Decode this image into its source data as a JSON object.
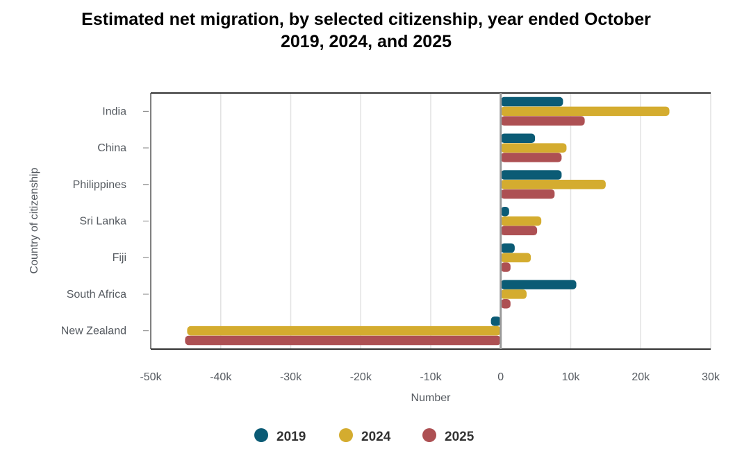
{
  "chart_data": {
    "type": "bar",
    "orientation": "horizontal",
    "title": "Estimated net migration, by selected citizenship, year ended October 2019, 2024, and 2025",
    "title_lines": [
      "Estimated net migration, by selected citizenship, year ended October",
      "2019, 2024, and 2025"
    ],
    "xlabel": "Number",
    "ylabel": "Country of citizenship",
    "xlim": [
      -50000,
      30000
    ],
    "xticks": [
      -50000,
      -40000,
      -30000,
      -20000,
      -10000,
      0,
      10000,
      20000,
      30000
    ],
    "xtick_labels": [
      "-50k",
      "-40k",
      "-30k",
      "-20k",
      "-10k",
      "0",
      "10k",
      "20k",
      "30k"
    ],
    "grid": true,
    "legend_position": "bottom",
    "categories": [
      "India",
      "China",
      "Philippines",
      "Sri Lanka",
      "Fiji",
      "South Africa",
      "New Zealand"
    ],
    "series": [
      {
        "name": "2019",
        "color": "#0b5b75",
        "values": [
          8900,
          4900,
          8700,
          1200,
          2000,
          10800,
          -1400
        ]
      },
      {
        "name": "2024",
        "color": "#d4ac2f",
        "values": [
          24100,
          9400,
          15000,
          5800,
          4300,
          3700,
          -44800
        ]
      },
      {
        "name": "2025",
        "color": "#ad5053",
        "values": [
          12000,
          8700,
          7700,
          5200,
          1400,
          1400,
          -45100
        ]
      }
    ]
  }
}
